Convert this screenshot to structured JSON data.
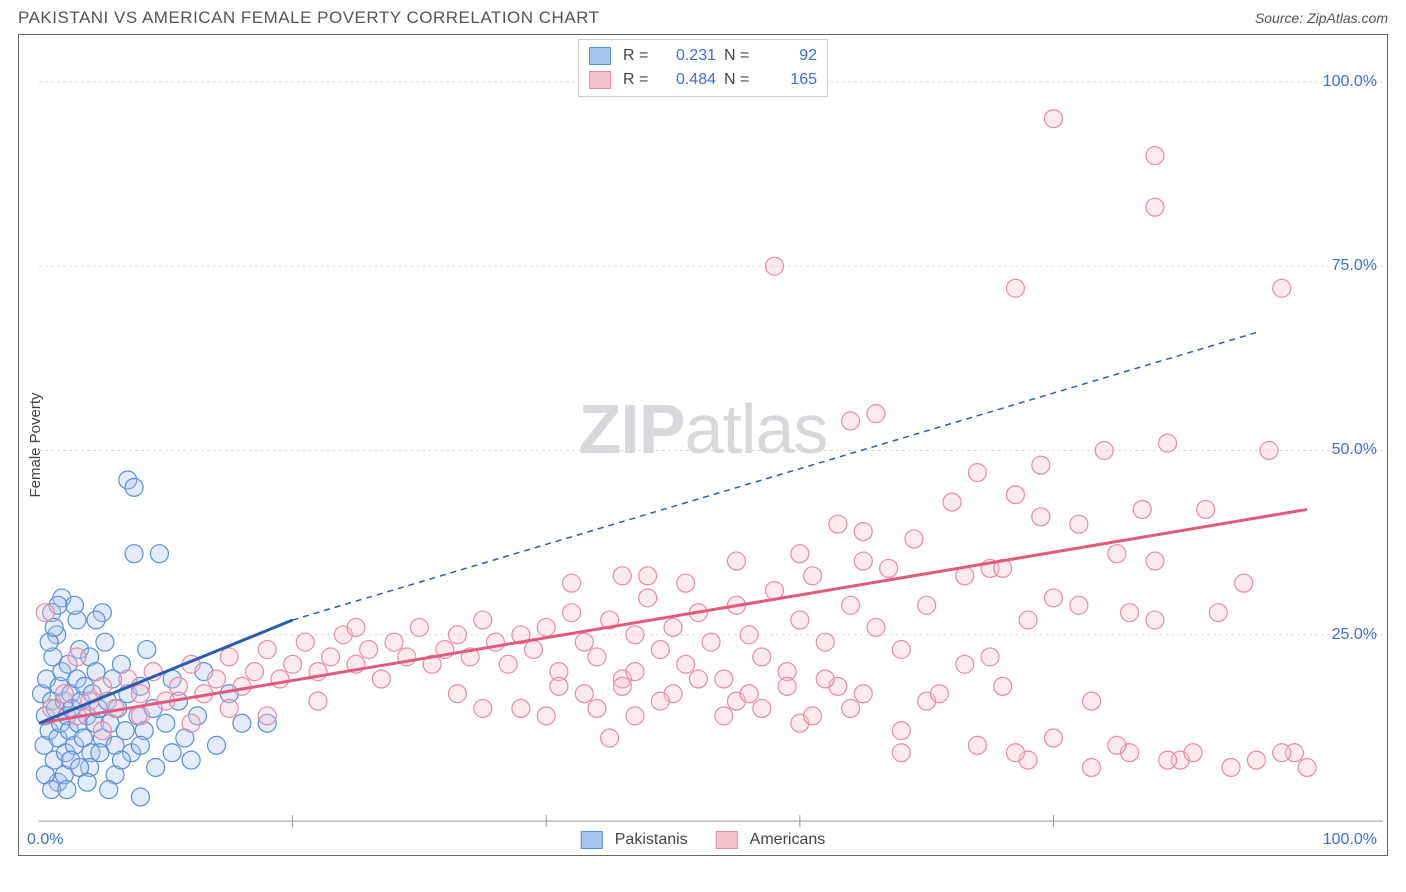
{
  "title": "PAKISTANI VS AMERICAN FEMALE POVERTY CORRELATION CHART",
  "source": "Source: ZipAtlas.com",
  "ylabel": "Female Poverty",
  "watermark_zip": "ZIP",
  "watermark_atlas": "atlas",
  "chart": {
    "type": "scatter",
    "xlim": [
      0,
      100
    ],
    "ylim": [
      0,
      105
    ],
    "y_ticks": [
      25,
      50,
      75,
      100
    ],
    "y_tick_labels": [
      "25.0%",
      "50.0%",
      "75.0%",
      "100.0%"
    ],
    "x_tick_first": "0.0%",
    "x_tick_last": "100.0%",
    "x_minor_ticks": [
      20,
      40,
      60,
      80
    ],
    "grid_color": "#dcdcdc",
    "point_radius": 9,
    "point_fill_opacity": 0.35,
    "point_stroke_width": 1.2,
    "series": [
      {
        "name": "Pakistanis",
        "color_fill": "#a8c5ee",
        "color_stroke": "#5a8fd8",
        "R": "0.231",
        "N": "92",
        "trend": {
          "x1": 0,
          "y1": 13,
          "x2": 20,
          "y2": 27,
          "color": "#2c5cb0",
          "solid_until_x": 20,
          "dash_x2": 96,
          "dash_y2": 66
        },
        "points": [
          [
            0.2,
            17
          ],
          [
            0.4,
            10
          ],
          [
            0.5,
            14
          ],
          [
            0.6,
            19
          ],
          [
            0.8,
            12
          ],
          [
            1.0,
            16
          ],
          [
            1.1,
            22
          ],
          [
            1.2,
            8
          ],
          [
            1.3,
            15
          ],
          [
            1.4,
            25
          ],
          [
            1.5,
            11
          ],
          [
            1.6,
            18
          ],
          [
            1.7,
            13
          ],
          [
            1.8,
            20
          ],
          [
            2.0,
            16
          ],
          [
            2.1,
            9
          ],
          [
            2.2,
            14
          ],
          [
            2.3,
            21
          ],
          [
            2.4,
            12
          ],
          [
            2.5,
            17
          ],
          [
            2.6,
            15
          ],
          [
            2.8,
            10
          ],
          [
            3.0,
            19
          ],
          [
            3.1,
            13
          ],
          [
            3.2,
            23
          ],
          [
            3.3,
            16
          ],
          [
            3.5,
            11
          ],
          [
            3.6,
            18
          ],
          [
            3.8,
            14
          ],
          [
            4.0,
            22
          ],
          [
            4.1,
            9
          ],
          [
            4.2,
            17
          ],
          [
            4.4,
            13
          ],
          [
            4.5,
            20
          ],
          [
            4.7,
            15
          ],
          [
            5.0,
            11
          ],
          [
            5.2,
            24
          ],
          [
            5.4,
            16
          ],
          [
            5.6,
            13
          ],
          [
            5.8,
            19
          ],
          [
            6.0,
            10
          ],
          [
            6.2,
            15
          ],
          [
            6.5,
            21
          ],
          [
            6.8,
            12
          ],
          [
            7.0,
            17
          ],
          [
            7.3,
            9
          ],
          [
            7.5,
            36
          ],
          [
            7.8,
            14
          ],
          [
            8.0,
            18
          ],
          [
            8.3,
            12
          ],
          [
            8.5,
            23
          ],
          [
            9.0,
            15
          ],
          [
            9.5,
            36
          ],
          [
            10.0,
            13
          ],
          [
            10.5,
            19
          ],
          [
            11.0,
            16
          ],
          [
            11.5,
            11
          ],
          [
            7.0,
            46
          ],
          [
            7.5,
            45
          ],
          [
            12.5,
            14
          ],
          [
            13.0,
            20
          ],
          [
            14.0,
            10
          ],
          [
            15.0,
            17
          ],
          [
            16.0,
            13
          ],
          [
            1.0,
            28
          ],
          [
            1.5,
            5
          ],
          [
            2.0,
            6
          ],
          [
            3.0,
            27
          ],
          [
            4.0,
            7
          ],
          [
            5.0,
            28
          ],
          [
            6.0,
            6
          ],
          [
            0.8,
            24
          ],
          [
            1.2,
            26
          ],
          [
            2.5,
            8
          ],
          [
            3.2,
            7
          ],
          [
            4.8,
            9
          ],
          [
            6.5,
            8
          ],
          [
            8.0,
            10
          ],
          [
            9.2,
            7
          ],
          [
            10.5,
            9
          ],
          [
            12.0,
            8
          ],
          [
            1.8,
            30
          ],
          [
            2.8,
            29
          ],
          [
            0.5,
            6
          ],
          [
            1.0,
            4
          ],
          [
            1.5,
            29
          ],
          [
            2.2,
            4
          ],
          [
            18,
            13
          ],
          [
            3.8,
            5
          ],
          [
            4.5,
            27
          ],
          [
            5.5,
            4
          ],
          [
            8.0,
            3
          ]
        ]
      },
      {
        "name": "Americans",
        "color_fill": "#f5c4d0",
        "color_stroke": "#e88aa3",
        "R": "0.484",
        "N": "165",
        "trend": {
          "x1": 0,
          "y1": 13,
          "x2": 100,
          "y2": 42,
          "color": "#e15a7d",
          "width": 3
        },
        "points": [
          [
            0.5,
            28
          ],
          [
            1.0,
            15
          ],
          [
            2.0,
            17
          ],
          [
            3.0,
            22
          ],
          [
            4.0,
            16
          ],
          [
            5.0,
            18
          ],
          [
            6.0,
            15
          ],
          [
            7.0,
            19
          ],
          [
            8.0,
            17
          ],
          [
            9.0,
            20
          ],
          [
            10.0,
            16
          ],
          [
            11.0,
            18
          ],
          [
            12.0,
            21
          ],
          [
            13.0,
            17
          ],
          [
            14.0,
            19
          ],
          [
            15.0,
            22
          ],
          [
            16.0,
            18
          ],
          [
            17.0,
            20
          ],
          [
            18.0,
            23
          ],
          [
            19.0,
            19
          ],
          [
            20.0,
            21
          ],
          [
            21.0,
            24
          ],
          [
            22.0,
            20
          ],
          [
            23.0,
            22
          ],
          [
            24.0,
            25
          ],
          [
            25.0,
            21
          ],
          [
            26.0,
            23
          ],
          [
            27.0,
            19
          ],
          [
            28.0,
            24
          ],
          [
            29.0,
            22
          ],
          [
            30.0,
            26
          ],
          [
            31.0,
            21
          ],
          [
            32.0,
            23
          ],
          [
            33.0,
            25
          ],
          [
            34.0,
            22
          ],
          [
            35.0,
            27
          ],
          [
            36.0,
            24
          ],
          [
            37.0,
            21
          ],
          [
            38.0,
            25
          ],
          [
            39.0,
            23
          ],
          [
            40.0,
            26
          ],
          [
            41.0,
            20
          ],
          [
            42.0,
            28
          ],
          [
            43.0,
            24
          ],
          [
            44.0,
            22
          ],
          [
            45.0,
            27
          ],
          [
            46.0,
            19
          ],
          [
            47.0,
            25
          ],
          [
            48.0,
            30
          ],
          [
            49.0,
            23
          ],
          [
            50.0,
            26
          ],
          [
            51.0,
            21
          ],
          [
            52.0,
            28
          ],
          [
            53.0,
            24
          ],
          [
            54.0,
            19
          ],
          [
            55.0,
            29
          ],
          [
            56.0,
            25
          ],
          [
            57.0,
            22
          ],
          [
            58.0,
            31
          ],
          [
            59.0,
            20
          ],
          [
            60.0,
            27
          ],
          [
            61.0,
            33
          ],
          [
            62.0,
            24
          ],
          [
            63.0,
            18
          ],
          [
            64.0,
            29
          ],
          [
            65.0,
            35
          ],
          [
            66.0,
            26
          ],
          [
            66.0,
            55
          ],
          [
            68.0,
            23
          ],
          [
            69.0,
            38
          ],
          [
            70.0,
            29
          ],
          [
            64.0,
            54
          ],
          [
            58.0,
            75
          ],
          [
            73.0,
            21
          ],
          [
            63.0,
            40
          ],
          [
            75.0,
            34
          ],
          [
            76.0,
            18
          ],
          [
            77.0,
            44
          ],
          [
            78.0,
            27
          ],
          [
            74.0,
            47
          ],
          [
            77.0,
            72
          ],
          [
            79.0,
            48
          ],
          [
            82.0,
            29
          ],
          [
            83.0,
            16
          ],
          [
            84.0,
            50
          ],
          [
            85.0,
            36
          ],
          [
            86.0,
            9
          ],
          [
            87.0,
            42
          ],
          [
            88.0,
            27
          ],
          [
            89.0,
            51
          ],
          [
            80.0,
            95
          ],
          [
            79.0,
            41
          ],
          [
            88.0,
            83
          ],
          [
            93.0,
            28
          ],
          [
            88.0,
            90
          ],
          [
            95.0,
            32
          ],
          [
            96.0,
            8
          ],
          [
            97.0,
            50
          ],
          [
            98.0,
            72
          ],
          [
            99.0,
            9
          ],
          [
            100.0,
            7
          ],
          [
            45.0,
            11
          ],
          [
            55.0,
            35
          ],
          [
            60.0,
            13
          ],
          [
            65.0,
            39
          ],
          [
            68.0,
            12
          ],
          [
            72.0,
            43
          ],
          [
            78.0,
            8
          ],
          [
            82.0,
            40
          ],
          [
            85.0,
            10
          ],
          [
            88.0,
            35
          ],
          [
            90.0,
            8
          ],
          [
            92.0,
            42
          ],
          [
            94.0,
            7
          ],
          [
            48.0,
            33
          ],
          [
            38.0,
            15
          ],
          [
            42.0,
            32
          ],
          [
            33.0,
            17
          ],
          [
            25.0,
            26
          ],
          [
            18.0,
            14
          ],
          [
            22.0,
            16
          ],
          [
            12.0,
            13
          ],
          [
            15.0,
            15
          ],
          [
            8.0,
            14
          ],
          [
            5.0,
            12
          ],
          [
            3.0,
            14
          ],
          [
            50.0,
            17
          ],
          [
            55.0,
            16
          ],
          [
            60.0,
            36
          ],
          [
            65.0,
            17
          ],
          [
            70.0,
            16
          ],
          [
            75.0,
            22
          ],
          [
            80.0,
            30
          ],
          [
            41.0,
            18
          ],
          [
            43.0,
            17
          ],
          [
            46.0,
            18
          ],
          [
            49.0,
            16
          ],
          [
            52.0,
            19
          ],
          [
            56.0,
            17
          ],
          [
            59.0,
            18
          ],
          [
            62.0,
            19
          ],
          [
            46.0,
            33
          ],
          [
            68.0,
            9
          ],
          [
            71.0,
            17
          ],
          [
            74.0,
            10
          ],
          [
            77.0,
            9
          ],
          [
            80.0,
            11
          ],
          [
            83.0,
            7
          ],
          [
            86.0,
            28
          ],
          [
            89.0,
            8
          ],
          [
            91.0,
            9
          ],
          [
            47.0,
            14
          ],
          [
            98.0,
            9
          ],
          [
            35.0,
            15
          ],
          [
            40.0,
            14
          ],
          [
            44.0,
            15
          ],
          [
            51.0,
            32
          ],
          [
            54.0,
            14
          ],
          [
            57.0,
            15
          ],
          [
            61.0,
            14
          ],
          [
            64.0,
            15
          ],
          [
            67.0,
            34
          ],
          [
            47.0,
            20
          ],
          [
            73.0,
            33
          ],
          [
            76.0,
            34
          ]
        ]
      }
    ]
  }
}
